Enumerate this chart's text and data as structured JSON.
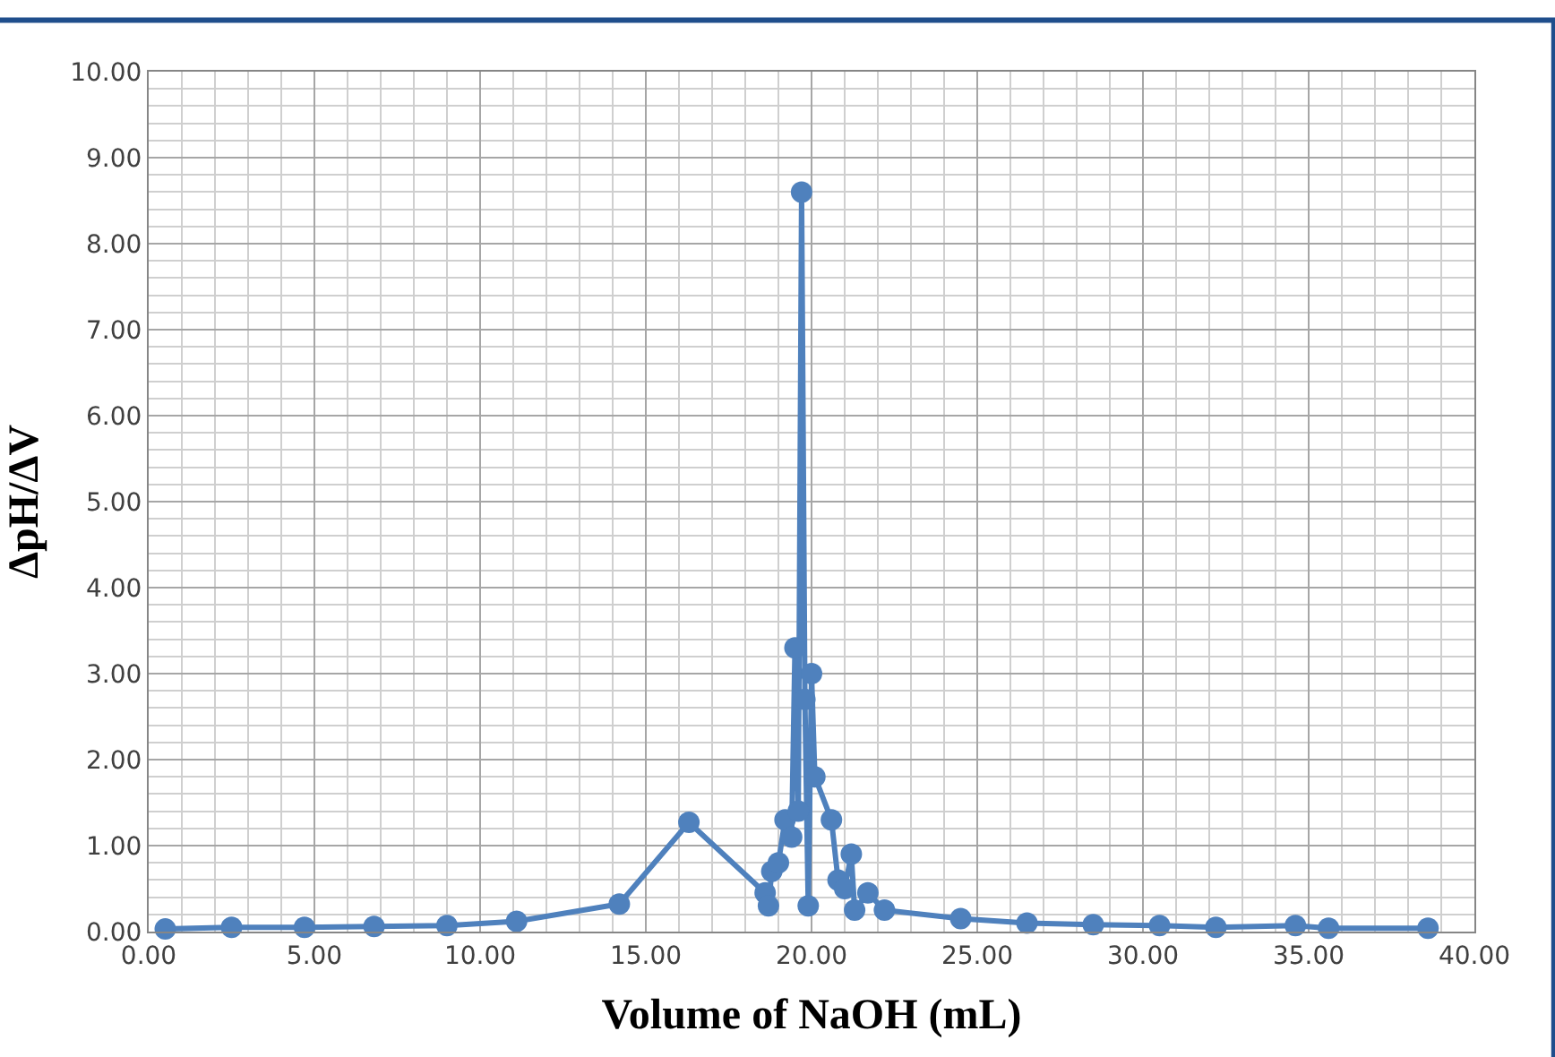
{
  "chart_data": {
    "type": "line",
    "xlabel": "Volume of NaOH (mL)",
    "ylabel": "ΔpH/ΔV",
    "x": [
      0.5,
      2.5,
      4.7,
      6.8,
      9.0,
      11.1,
      14.2,
      16.3,
      18.6,
      18.7,
      18.8,
      19.0,
      19.2,
      19.4,
      19.5,
      19.6,
      19.7,
      19.8,
      19.9,
      20.0,
      20.1,
      20.6,
      20.8,
      21.0,
      21.2,
      21.3,
      21.7,
      22.2,
      24.5,
      26.5,
      28.5,
      30.5,
      32.2,
      34.6,
      35.6,
      38.6
    ],
    "series": [
      {
        "color": "#4f81bd",
        "values": [
          0.03,
          0.05,
          0.05,
          0.06,
          0.07,
          0.12,
          0.32,
          1.27,
          0.45,
          0.3,
          0.7,
          0.8,
          1.3,
          1.1,
          3.3,
          1.4,
          8.6,
          2.7,
          0.3,
          3.0,
          1.8,
          1.3,
          0.6,
          0.5,
          0.9,
          0.25,
          0.45,
          0.25,
          0.15,
          0.1,
          0.08,
          0.07,
          0.05,
          0.07,
          0.04,
          0.04
        ]
      }
    ],
    "xlim": [
      0,
      40
    ],
    "ylim": [
      0,
      10
    ],
    "xticks": [
      {
        "value": 0,
        "label": "0.00"
      },
      {
        "value": 5,
        "label": "5.00"
      },
      {
        "value": 10,
        "label": "10.00"
      },
      {
        "value": 15,
        "label": "15.00"
      },
      {
        "value": 20,
        "label": "20.00"
      },
      {
        "value": 25,
        "label": "25.00"
      },
      {
        "value": 30,
        "label": "30.00"
      },
      {
        "value": 35,
        "label": "35.00"
      },
      {
        "value": 40,
        "label": "40.00"
      }
    ],
    "yticks": [
      {
        "value": 0,
        "label": "0.00"
      },
      {
        "value": 1,
        "label": "1.00"
      },
      {
        "value": 2,
        "label": "2.00"
      },
      {
        "value": 3,
        "label": "3.00"
      },
      {
        "value": 4,
        "label": "4.00"
      },
      {
        "value": 5,
        "label": "5.00"
      },
      {
        "value": 6,
        "label": "6.00"
      },
      {
        "value": 7,
        "label": "7.00"
      },
      {
        "value": 8,
        "label": "8.00"
      },
      {
        "value": 9,
        "label": "9.00"
      },
      {
        "value": 10,
        "label": "10.00"
      }
    ],
    "grid": true,
    "marker": "circle",
    "line_style": "solid",
    "legend": false
  }
}
